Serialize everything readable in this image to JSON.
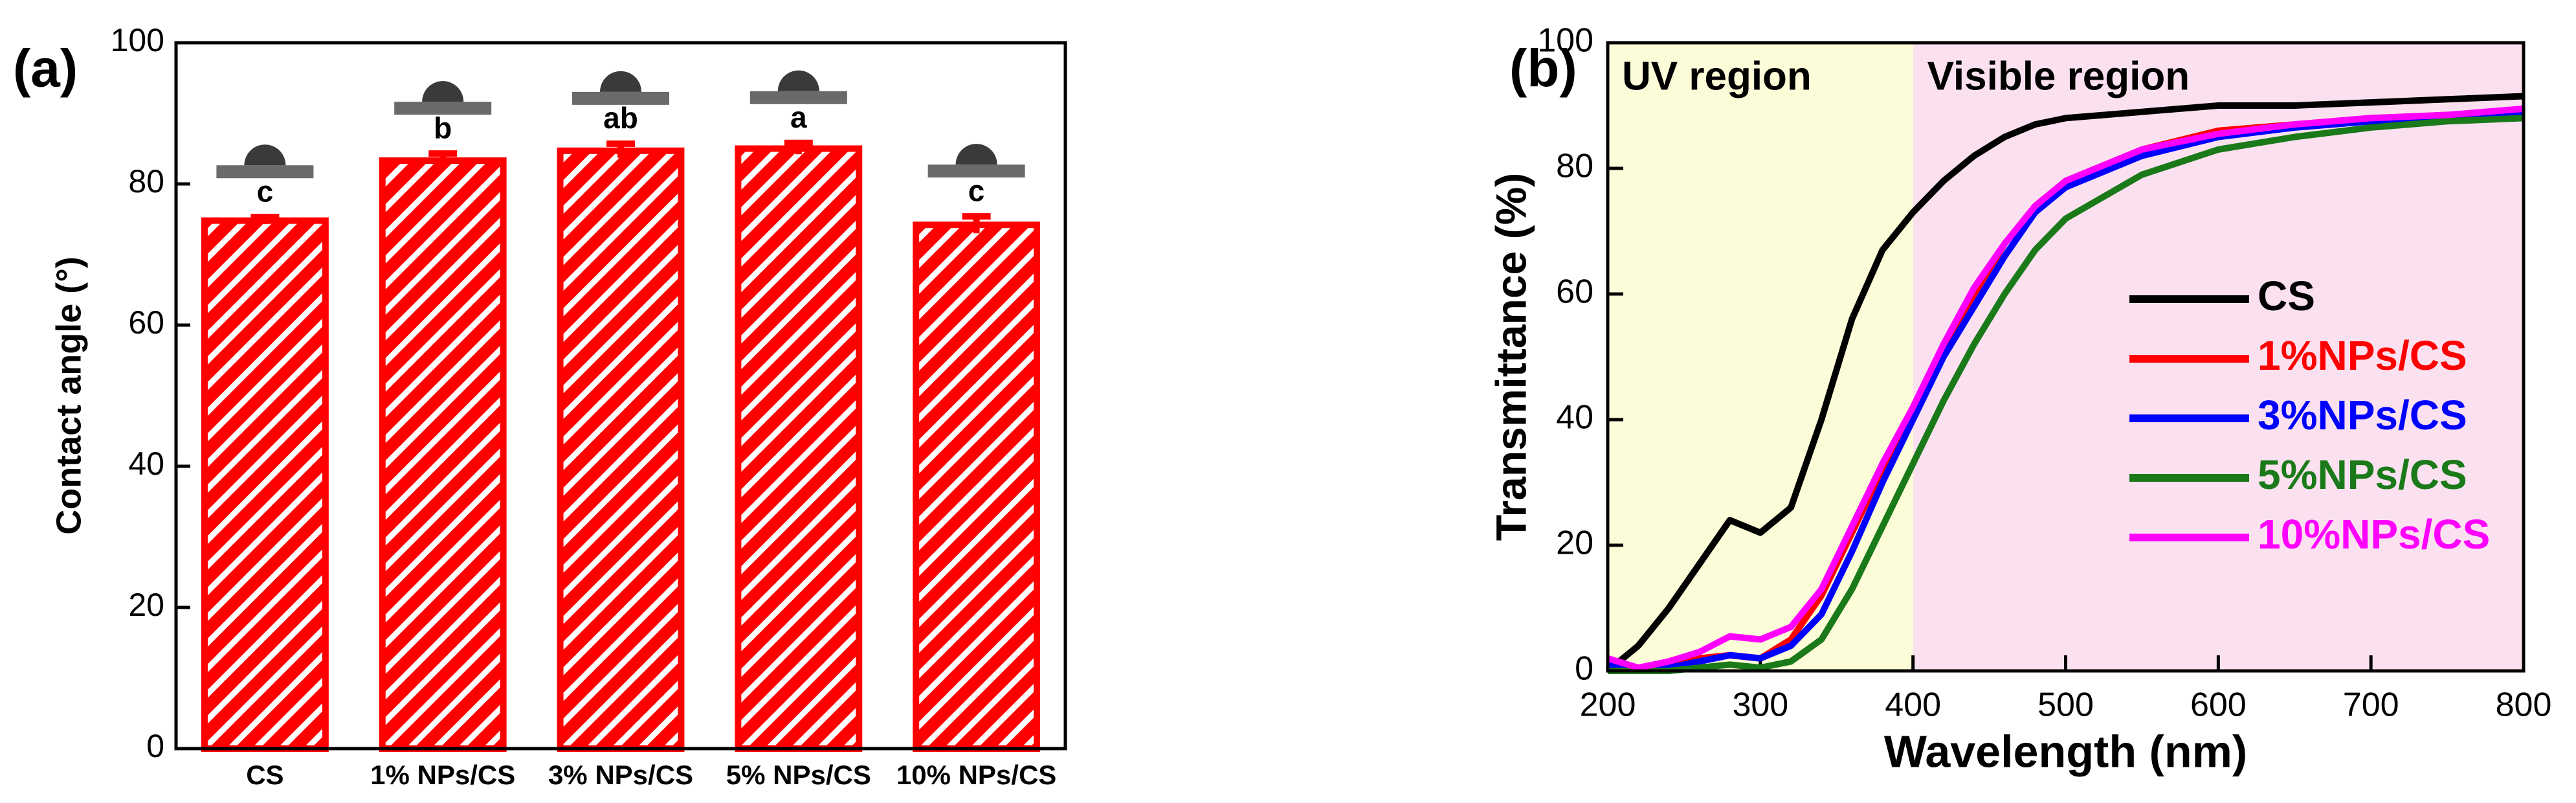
{
  "chart_data": [
    {
      "type": "bar",
      "panel_label": "(a)",
      "y_label": "Contact angle (°)",
      "categories": [
        "CS",
        "1% NPs/CS",
        "3% NPs/CS",
        "5% NPs/CS",
        "10% NPs/CS"
      ],
      "values": [
        74.8,
        83.3,
        84.7,
        85.0,
        74.2
      ],
      "errors": [
        0.5,
        1.0,
        1.0,
        0.8,
        1.2
      ],
      "annotations": [
        "c",
        "b",
        "ab",
        "a",
        "c"
      ],
      "color": "#ff0000",
      "ylim": [
        0,
        100
      ],
      "yticks": [
        0,
        20,
        40,
        60,
        80,
        100
      ]
    },
    {
      "type": "line",
      "panel_label": "(b)",
      "x_label": "Wavelength (nm)",
      "y_label": "Transmittance (%)",
      "x": [
        200,
        220,
        240,
        260,
        280,
        300,
        320,
        340,
        360,
        380,
        400,
        420,
        440,
        460,
        480,
        500,
        550,
        600,
        650,
        700,
        750,
        800
      ],
      "regions": [
        {
          "label": "UV region",
          "start": 200,
          "end": 400,
          "color": "#fdfcd8"
        },
        {
          "label": "Visible region",
          "start": 400,
          "end": 800,
          "color": "#fbe1ef"
        }
      ],
      "series": [
        {
          "name": "CS",
          "color": "#000000",
          "values": [
            0,
            4,
            10,
            17,
            24,
            22,
            26,
            40,
            56,
            67,
            73,
            78,
            82,
            85,
            87,
            88,
            89,
            90,
            90,
            90.5,
            91,
            91.5
          ]
        },
        {
          "name": "1%NPs/CS",
          "color": "#ff0000",
          "values": [
            1,
            0,
            1,
            2,
            2.5,
            2,
            5,
            12,
            22,
            32,
            41,
            51,
            60,
            68,
            74,
            78,
            83,
            86,
            87,
            88,
            88.5,
            89
          ]
        },
        {
          "name": "3%NPs/CS",
          "color": "#0000ff",
          "values": [
            1,
            0,
            0.5,
            1.5,
            2.5,
            2,
            4,
            9,
            19,
            30,
            40,
            50,
            58,
            66,
            73,
            77,
            82,
            85,
            86.5,
            87.5,
            88,
            89
          ]
        },
        {
          "name": "5%NPs/CS",
          "color": "#1a7a1a",
          "values": [
            0,
            0,
            0,
            0.5,
            1,
            0.5,
            1.5,
            5,
            13,
            23,
            33,
            43,
            52,
            60,
            67,
            72,
            79,
            83,
            85,
            86.5,
            87.5,
            88
          ]
        },
        {
          "name": "10%NPs/CS",
          "color": "#ff00ff",
          "values": [
            2,
            0.5,
            1.5,
            3,
            5.5,
            5,
            7,
            13,
            23,
            33,
            42,
            52,
            61,
            68,
            74,
            78,
            83,
            85.5,
            87,
            88,
            88.5,
            89.5
          ]
        }
      ],
      "xlim": [
        200,
        800
      ],
      "xticks": [
        200,
        300,
        400,
        500,
        600,
        700,
        800
      ],
      "ylim": [
        0,
        100
      ],
      "yticks": [
        0,
        20,
        40,
        60,
        80,
        100
      ]
    }
  ]
}
